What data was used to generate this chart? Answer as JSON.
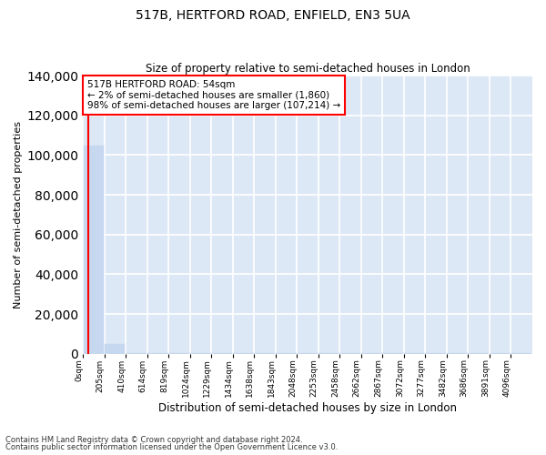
{
  "title": "517B, HERTFORD ROAD, ENFIELD, EN3 5UA",
  "subtitle": "Size of property relative to semi-detached houses in London",
  "xlabel": "Distribution of semi-detached houses by size in London",
  "ylabel": "Number of semi-detached properties",
  "bar_values": [
    105000,
    5000,
    200,
    200,
    200,
    200,
    200,
    200,
    200,
    200,
    200,
    200,
    200,
    200,
    200,
    200,
    200,
    200,
    200,
    200,
    200
  ],
  "bin_labels": [
    "0sqm",
    "205sqm",
    "410sqm",
    "614sqm",
    "819sqm",
    "1024sqm",
    "1229sqm",
    "1434sqm",
    "1638sqm",
    "1843sqm",
    "2048sqm",
    "2253sqm",
    "2458sqm",
    "2662sqm",
    "2867sqm",
    "3072sqm",
    "3277sqm",
    "3482sqm",
    "3686sqm",
    "3891sqm",
    "4096sqm"
  ],
  "bar_color": "#c5d8ef",
  "bar_edge_color": "#c5d8ef",
  "annotation_text": "517B HERTFORD ROAD: 54sqm\n← 2% of semi-detached houses are smaller (1,860)\n98% of semi-detached houses are larger (107,214) →",
  "annotation_box_color": "white",
  "annotation_box_edge_color": "red",
  "ylim": [
    0,
    140000
  ],
  "yticks": [
    0,
    20000,
    40000,
    60000,
    80000,
    100000,
    120000,
    140000
  ],
  "footnote1": "Contains HM Land Registry data © Crown copyright and database right 2024.",
  "footnote2": "Contains public sector information licensed under the Open Government Licence v3.0.",
  "background_color": "#dce8f5",
  "grid_color": "white",
  "title_fontsize": 10,
  "subtitle_fontsize": 8.5
}
